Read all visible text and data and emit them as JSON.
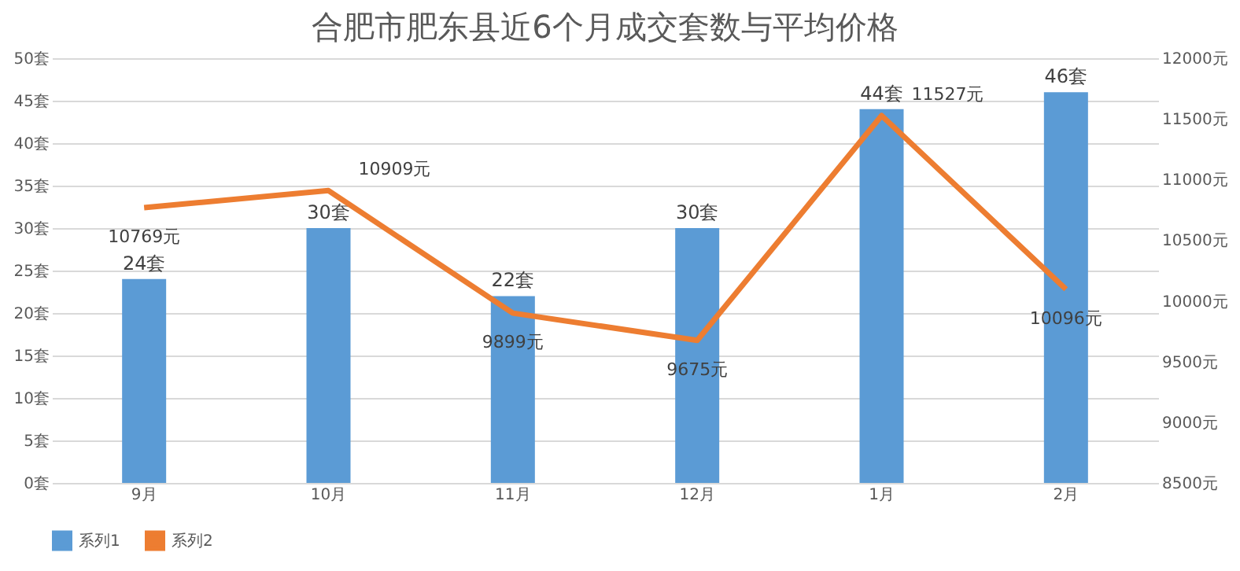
{
  "chart_data": {
    "type": "bar",
    "title": "合肥市肥东县近6个月成交套数与平均价格",
    "categories": [
      "9月",
      "10月",
      "11月",
      "12月",
      "1月",
      "2月"
    ],
    "series": [
      {
        "name": "系列1",
        "color": "#5b9bd5",
        "values": [
          24,
          30,
          22,
          30,
          44,
          46
        ],
        "value_labels": [
          "24套",
          "30套",
          "22套",
          "30套",
          "44套",
          "46套"
        ]
      },
      {
        "name": "系列2",
        "type": "line",
        "axis": "y2",
        "color": "#ed7d31",
        "values": [
          10769,
          10909,
          9899,
          9675,
          11527,
          10096
        ],
        "value_labels": [
          "10769元",
          "10909元",
          "9899元",
          "9675元",
          "11527元",
          "10096元"
        ]
      }
    ],
    "ylim": [
      0,
      50
    ],
    "yticks": [
      {
        "value": 0,
        "label": "0套"
      },
      {
        "value": 5,
        "label": "5套"
      },
      {
        "value": 10,
        "label": "10套"
      },
      {
        "value": 15,
        "label": "15套"
      },
      {
        "value": 20,
        "label": "20套"
      },
      {
        "value": 25,
        "label": "25套"
      },
      {
        "value": 30,
        "label": "30套"
      },
      {
        "value": 35,
        "label": "35套"
      },
      {
        "value": 40,
        "label": "40套"
      },
      {
        "value": 45,
        "label": "45套"
      },
      {
        "value": 50,
        "label": "50套"
      }
    ],
    "y2lim": [
      8500,
      12000
    ],
    "y2ticks": [
      {
        "value": 8500,
        "label": "8500元"
      },
      {
        "value": 9000,
        "label": "9000元"
      },
      {
        "value": 9500,
        "label": "9500元"
      },
      {
        "value": 10000,
        "label": "10000元"
      },
      {
        "value": 10500,
        "label": "10500元"
      },
      {
        "value": 11000,
        "label": "11000元"
      },
      {
        "value": 11500,
        "label": "11500元"
      },
      {
        "value": 12000,
        "label": "12000元"
      }
    ],
    "grid": "y",
    "legend": "bottom",
    "marker": "none",
    "line_style": "solid"
  }
}
